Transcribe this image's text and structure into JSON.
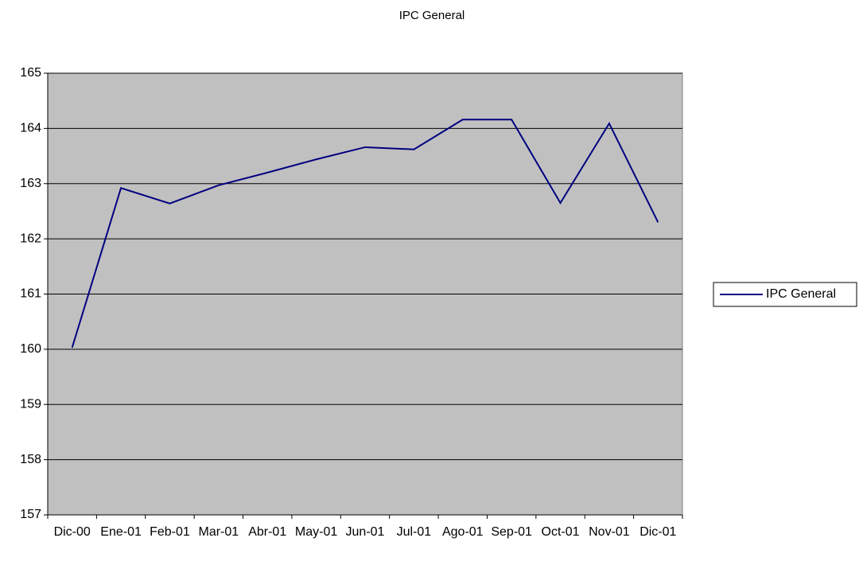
{
  "chart_data": {
    "type": "line",
    "title": "IPC General",
    "categories": [
      "Dic-00",
      "Ene-01",
      "Feb-01",
      "Mar-01",
      "Abr-01",
      "May-01",
      "Jun-01",
      "Jul-01",
      "Ago-01",
      "Sep-01",
      "Oct-01",
      "Nov-01",
      "Dic-01"
    ],
    "series": [
      {
        "name": "IPC General",
        "color": "#000080",
        "values": [
          160.03,
          162.92,
          162.64,
          162.97,
          163.2,
          163.44,
          163.66,
          163.62,
          164.16,
          164.16,
          162.65,
          164.09,
          162.3
        ]
      }
    ],
    "ylim": [
      157,
      165
    ],
    "yticks": [
      157,
      158,
      159,
      160,
      161,
      162,
      163,
      164,
      165
    ],
    "grid": true,
    "legend": "right",
    "plot_background": "#c0c0c0"
  }
}
